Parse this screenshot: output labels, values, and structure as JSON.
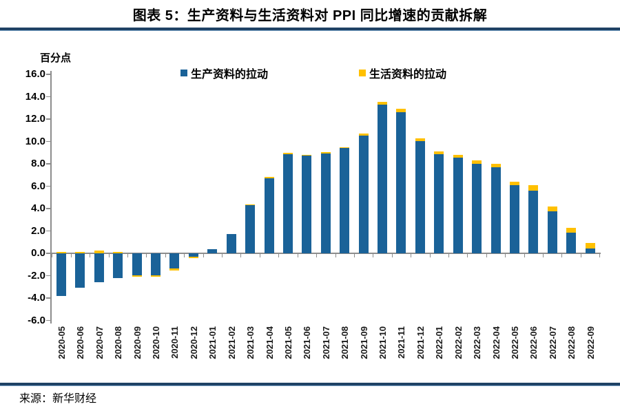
{
  "header": {
    "title": "图表 5：生产资料与生活资料对 PPI 同比增速的贡献拆解"
  },
  "chart_data": {
    "type": "bar",
    "stacked": true,
    "title": "图表 5：生产资料与生活资料对 PPI 同比增速的贡献拆解",
    "unit_label": "百分点",
    "categories": [
      "2020-05",
      "2020-06",
      "2020-07",
      "2020-08",
      "2020-09",
      "2020-10",
      "2020-11",
      "2020-12",
      "2021-01",
      "2021-02",
      "2021-03",
      "2021-04",
      "2021-05",
      "2021-06",
      "2021-07",
      "2021-08",
      "2021-09",
      "2021-10",
      "2021-11",
      "2021-12",
      "2022-01",
      "2022-02",
      "2022-03",
      "2022-04",
      "2022-05",
      "2022-06",
      "2022-07",
      "2022-08",
      "2022-09"
    ],
    "series": [
      {
        "name": "生产资料的拉动",
        "color": "#1A6298",
        "values": [
          -3.8,
          -3.1,
          -2.6,
          -2.2,
          -1.95,
          -1.95,
          -1.35,
          -0.3,
          0.4,
          1.7,
          4.35,
          6.7,
          8.85,
          8.75,
          8.9,
          9.4,
          10.55,
          13.3,
          12.6,
          10.05,
          8.85,
          8.55,
          8.0,
          7.7,
          6.1,
          5.6,
          3.75,
          1.85,
          0.45
        ]
      },
      {
        "name": "生活资料的拉动",
        "color": "#FFC000",
        "values": [
          0.15,
          0.12,
          0.25,
          0.15,
          -0.15,
          -0.15,
          -0.2,
          -0.12,
          0,
          0,
          0.05,
          0.12,
          0.15,
          0.06,
          0.12,
          0.1,
          0.15,
          0.22,
          0.3,
          0.25,
          0.25,
          0.25,
          0.3,
          0.3,
          0.32,
          0.5,
          0.45,
          0.4,
          0.45
        ]
      }
    ],
    "ylim": [
      -6,
      16
    ],
    "ytick_step": 2,
    "ytick_labels": [
      "16.0",
      "14.0",
      "12.0",
      "10.0",
      "8.0",
      "6.0",
      "4.0",
      "2.0",
      "0.0",
      "-2.0",
      "-4.0",
      "-6.0"
    ],
    "grid": false,
    "legend_position": "top"
  },
  "source": {
    "label": "来源：新华财经"
  },
  "colors": {
    "rule_navy": "#1F4265",
    "rule_navy_light": "#7FA7CB",
    "axis_gray": "#8C8C8C"
  }
}
